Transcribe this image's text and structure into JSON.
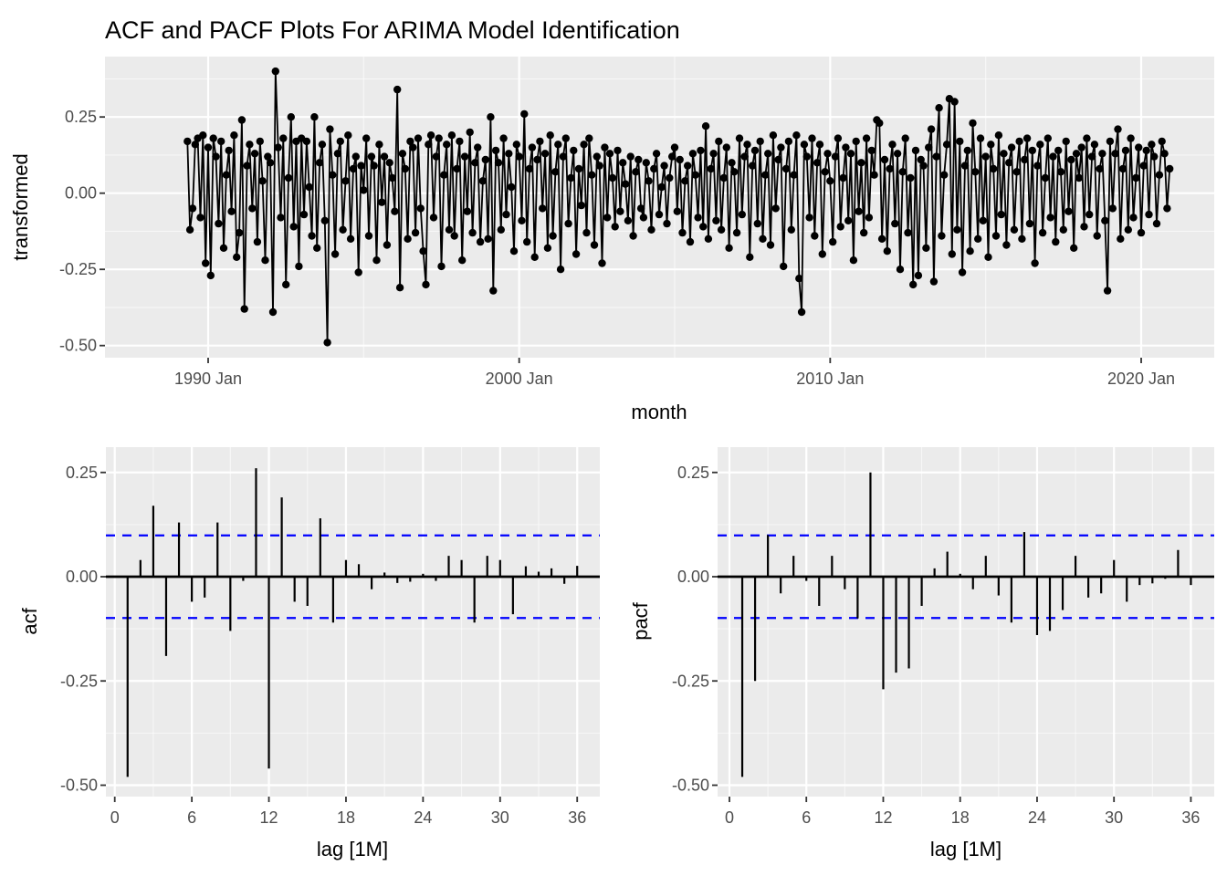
{
  "title": "ACF and PACF Plots For ARIMA Model Identification",
  "colors": {
    "background": "#FFFFFF",
    "panel_bg": "#EBEBEB",
    "grid_major": "#FFFFFF",
    "grid_minor": "rgba(255,255,255,0.6)",
    "series": "#000000",
    "stem": "#000000",
    "significance_line": "#0000FF",
    "tick_label": "#4D4D4D",
    "axis_title": "#000000",
    "tick_mark": "#333333"
  },
  "significance_level": 0.099,
  "chart_data": [
    {
      "type": "line",
      "name": "transformed-time-series",
      "xlabel": "month",
      "ylabel": "transformed",
      "x_start_label": "1989 May",
      "x_tick_labels": [
        "1990 Jan",
        "2000 Jan",
        "2010 Jan",
        "2020 Jan"
      ],
      "x_tick_month_index": [
        8,
        128,
        248,
        368
      ],
      "x_minor_month_index": [
        68,
        188,
        308
      ],
      "y_tick_labels": [
        "0.25",
        "0.00",
        "-0.25",
        "-0.50"
      ],
      "y_tick_values": [
        0.25,
        0.0,
        -0.25,
        -0.5
      ],
      "y_minor_values": [
        0.375,
        0.125,
        -0.125,
        -0.375
      ],
      "ylim": [
        -0.54,
        0.45
      ],
      "grid": true,
      "legend": "none",
      "values": [
        0.17,
        -0.12,
        -0.05,
        0.16,
        0.18,
        -0.08,
        0.19,
        -0.23,
        0.15,
        -0.27,
        0.18,
        0.12,
        -0.1,
        0.17,
        -0.18,
        0.06,
        0.14,
        -0.06,
        0.19,
        -0.21,
        -0.13,
        0.24,
        -0.38,
        0.09,
        0.16,
        -0.05,
        0.13,
        -0.16,
        0.17,
        0.04,
        -0.22,
        0.12,
        0.1,
        -0.39,
        0.4,
        0.15,
        -0.08,
        0.18,
        -0.3,
        0.05,
        0.25,
        -0.11,
        0.17,
        -0.24,
        0.18,
        -0.07,
        0.17,
        0.02,
        -0.14,
        0.25,
        -0.18,
        0.1,
        0.16,
        -0.09,
        -0.49,
        0.21,
        0.06,
        -0.2,
        0.13,
        0.17,
        -0.12,
        0.04,
        0.19,
        -0.15,
        0.08,
        0.12,
        -0.26,
        0.09,
        0.01,
        0.18,
        -0.14,
        0.12,
        0.09,
        -0.22,
        0.16,
        -0.03,
        0.12,
        -0.17,
        0.1,
        0.05,
        -0.06,
        0.34,
        -0.31,
        0.13,
        0.08,
        -0.15,
        0.17,
        0.15,
        -0.13,
        0.18,
        -0.05,
        -0.19,
        -0.3,
        0.16,
        0.19,
        -0.08,
        0.12,
        0.18,
        -0.24,
        0.06,
        0.16,
        -0.12,
        0.19,
        -0.14,
        0.08,
        0.17,
        -0.22,
        0.12,
        -0.06,
        0.2,
        -0.13,
        0.1,
        0.15,
        -0.16,
        0.04,
        0.11,
        -0.15,
        0.25,
        -0.32,
        0.14,
        0.1,
        -0.12,
        0.18,
        -0.07,
        0.13,
        0.02,
        -0.19,
        0.16,
        0.12,
        -0.09,
        0.26,
        -0.16,
        0.08,
        0.15,
        -0.21,
        0.11,
        0.17,
        -0.05,
        0.13,
        -0.18,
        0.19,
        -0.14,
        0.07,
        0.16,
        -0.25,
        0.12,
        0.18,
        -0.1,
        0.05,
        0.14,
        -0.2,
        0.08,
        -0.04,
        0.16,
        -0.13,
        0.18,
        0.06,
        -0.17,
        0.12,
        0.09,
        -0.23,
        0.15,
        -0.08,
        0.13,
        0.05,
        -0.11,
        0.14,
        -0.06,
        0.1,
        0.03,
        -0.09,
        0.12,
        -0.14,
        0.07,
        0.11,
        -0.05,
        -0.08,
        0.1,
        0.04,
        -0.12,
        0.08,
        0.13,
        -0.07,
        0.02,
        0.09,
        -0.1,
        0.05,
        0.12,
        0.15,
        -0.06,
        0.11,
        -0.13,
        0.04,
        0.09,
        -0.16,
        0.13,
        0.06,
        -0.08,
        0.14,
        -0.11,
        0.22,
        -0.15,
        0.08,
        0.13,
        -0.09,
        0.17,
        -0.12,
        0.05,
        0.15,
        -0.18,
        0.1,
        0.07,
        -0.13,
        0.18,
        -0.07,
        0.12,
        0.16,
        -0.21,
        0.09,
        0.14,
        -0.1,
        0.17,
        -0.15,
        0.06,
        0.13,
        -0.17,
        0.19,
        -0.05,
        0.11,
        0.15,
        -0.24,
        0.08,
        0.17,
        -0.12,
        0.06,
        0.19,
        -0.28,
        -0.39,
        0.16,
        0.12,
        -0.08,
        0.18,
        -0.14,
        0.1,
        0.16,
        -0.2,
        0.07,
        0.13,
        0.04,
        -0.16,
        0.12,
        0.18,
        -0.11,
        0.05,
        0.15,
        -0.09,
        0.13,
        -0.22,
        0.17,
        -0.06,
        0.1,
        -0.13,
        0.18,
        -0.08,
        0.14,
        0.06,
        0.24,
        0.23,
        -0.15,
        0.11,
        -0.19,
        0.08,
        0.16,
        -0.1,
        0.13,
        -0.25,
        0.07,
        0.18,
        -0.13,
        0.05,
        -0.3,
        0.14,
        -0.27,
        0.11,
        0.09,
        -0.18,
        0.15,
        0.21,
        -0.29,
        0.12,
        0.28,
        -0.14,
        0.06,
        0.16,
        0.31,
        -0.2,
        0.3,
        -0.12,
        0.17,
        -0.26,
        0.09,
        0.14,
        -0.19,
        0.23,
        0.07,
        -0.15,
        0.18,
        -0.09,
        0.12,
        -0.21,
        0.16,
        0.08,
        -0.14,
        0.19,
        -0.07,
        0.13,
        -0.17,
        0.1,
        0.15,
        -0.12,
        0.07,
        0.17,
        -0.15,
        0.11,
        0.18,
        -0.1,
        0.14,
        -0.23,
        0.09,
        0.16,
        -0.13,
        0.05,
        0.18,
        -0.08,
        0.12,
        -0.16,
        0.14,
        0.07,
        -0.12,
        0.17,
        -0.06,
        0.11,
        -0.18,
        0.13,
        0.05,
        0.15,
        -0.11,
        0.18,
        -0.07,
        0.12,
        0.16,
        -0.14,
        0.08,
        0.13,
        -0.09,
        -0.32,
        0.17,
        -0.05,
        0.13,
        0.21,
        -0.15,
        0.08,
        0.14,
        -0.12,
        0.18,
        -0.08,
        0.05,
        0.15,
        -0.13,
        0.09,
        0.14,
        -0.07,
        0.16,
        0.12,
        -0.1,
        0.06,
        0.17,
        0.13,
        -0.05,
        0.08
      ]
    },
    {
      "type": "bar",
      "name": "acf",
      "xlabel": "lag [1M]",
      "ylabel": "acf",
      "x_tick_labels": [
        "0",
        "6",
        "12",
        "18",
        "24",
        "30",
        "36"
      ],
      "x_tick_values": [
        0,
        6,
        12,
        18,
        24,
        30,
        36
      ],
      "x_minor_values": [
        3,
        9,
        15,
        21,
        27,
        33
      ],
      "y_tick_labels": [
        "0.25",
        "0.00",
        "-0.25",
        "-0.50"
      ],
      "y_tick_values": [
        0.25,
        0.0,
        -0.25,
        -0.5
      ],
      "y_minor_values": [
        0.125,
        -0.125,
        -0.375
      ],
      "ylim": [
        -0.52,
        0.31
      ],
      "xlim": [
        -0.7,
        37.8
      ],
      "significance_bounds": [
        0.099,
        -0.099
      ],
      "lag_start": 1,
      "values": [
        -0.48,
        0.04,
        0.17,
        -0.19,
        0.13,
        -0.06,
        -0.05,
        0.13,
        -0.13,
        -0.01,
        0.26,
        -0.46,
        0.19,
        -0.06,
        -0.07,
        0.14,
        -0.11,
        0.04,
        0.03,
        -0.03,
        0.01,
        -0.015,
        -0.012,
        0.007,
        -0.01,
        0.05,
        0.04,
        -0.11,
        0.05,
        0.04,
        -0.09,
        0.025,
        0.012,
        0.02,
        -0.017,
        0.026
      ]
    },
    {
      "type": "bar",
      "name": "pacf",
      "xlabel": "lag [1M]",
      "ylabel": "pacf",
      "x_tick_labels": [
        "0",
        "6",
        "12",
        "18",
        "24",
        "30",
        "36"
      ],
      "x_tick_values": [
        0,
        6,
        12,
        18,
        24,
        30,
        36
      ],
      "x_minor_values": [
        3,
        9,
        15,
        21,
        27,
        33
      ],
      "y_tick_labels": [
        "0.25",
        "0.00",
        "-0.25",
        "-0.50"
      ],
      "y_tick_values": [
        0.25,
        0.0,
        -0.25,
        -0.5
      ],
      "y_minor_values": [
        0.125,
        -0.125,
        -0.375
      ],
      "ylim": [
        -0.52,
        0.31
      ],
      "xlim": [
        -0.7,
        37.8
      ],
      "significance_bounds": [
        0.099,
        -0.099
      ],
      "lag_start": 1,
      "values": [
        -0.48,
        -0.25,
        0.1,
        -0.04,
        0.05,
        -0.01,
        -0.07,
        0.05,
        -0.03,
        -0.1,
        0.25,
        -0.27,
        -0.23,
        -0.22,
        -0.07,
        0.02,
        0.06,
        0.007,
        -0.03,
        0.05,
        -0.045,
        -0.11,
        0.107,
        -0.14,
        -0.13,
        -0.08,
        0.05,
        -0.05,
        -0.04,
        0.04,
        -0.06,
        -0.02,
        -0.016,
        -0.005,
        0.064,
        -0.02
      ]
    }
  ]
}
